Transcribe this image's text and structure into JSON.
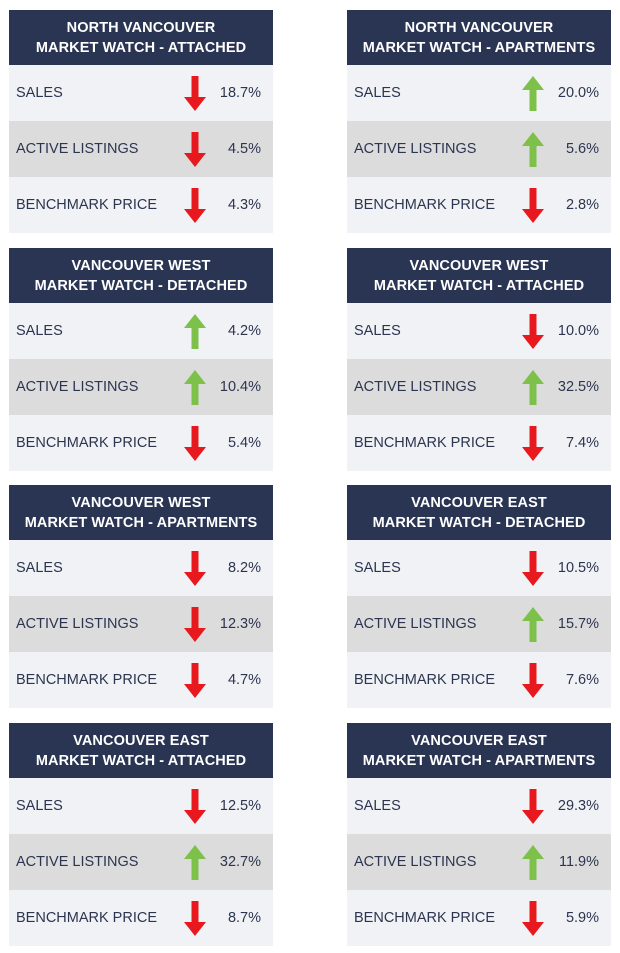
{
  "colors": {
    "header_bg": "#2a3554",
    "up": "#7dc14b",
    "down": "#e8191e",
    "row_light": "#f1f2f5",
    "row_dark": "#dcdcdc"
  },
  "cards": [
    {
      "title1": "NORTH VANCOUVER",
      "title2": "MARKET WATCH - ATTACHED",
      "rows": [
        {
          "label": "SALES",
          "dir": "down",
          "value": "18.7%"
        },
        {
          "label": "ACTIVE LISTINGS",
          "dir": "down",
          "value": "4.5%"
        },
        {
          "label": "BENCHMARK PRICE",
          "dir": "down",
          "value": "4.3%"
        }
      ]
    },
    {
      "title1": "NORTH VANCOUVER",
      "title2": "MARKET WATCH - APARTMENTS",
      "rows": [
        {
          "label": "SALES",
          "dir": "up",
          "value": "20.0%"
        },
        {
          "label": "ACTIVE LISTINGS",
          "dir": "up",
          "value": "5.6%"
        },
        {
          "label": "BENCHMARK PRICE",
          "dir": "down",
          "value": "2.8%"
        }
      ]
    },
    {
      "title1": "VANCOUVER WEST",
      "title2": "MARKET WATCH - DETACHED",
      "rows": [
        {
          "label": "SALES",
          "dir": "up",
          "value": "4.2%"
        },
        {
          "label": "ACTIVE LISTINGS",
          "dir": "up",
          "value": "10.4%"
        },
        {
          "label": "BENCHMARK PRICE",
          "dir": "down",
          "value": "5.4%"
        }
      ]
    },
    {
      "title1": "VANCOUVER WEST",
      "title2": "MARKET WATCH - ATTACHED",
      "rows": [
        {
          "label": "SALES",
          "dir": "down",
          "value": "10.0%"
        },
        {
          "label": "ACTIVE LISTINGS",
          "dir": "up",
          "value": "32.5%"
        },
        {
          "label": "BENCHMARK PRICE",
          "dir": "down",
          "value": "7.4%"
        }
      ]
    },
    {
      "title1": "VANCOUVER WEST",
      "title2": "MARKET WATCH - APARTMENTS",
      "rows": [
        {
          "label": "SALES",
          "dir": "down",
          "value": "8.2%"
        },
        {
          "label": "ACTIVE LISTINGS",
          "dir": "down",
          "value": "12.3%"
        },
        {
          "label": "BENCHMARK PRICE",
          "dir": "down",
          "value": "4.7%"
        }
      ]
    },
    {
      "title1": "VANCOUVER EAST",
      "title2": "MARKET WATCH - DETACHED",
      "rows": [
        {
          "label": "SALES",
          "dir": "down",
          "value": "10.5%"
        },
        {
          "label": "ACTIVE LISTINGS",
          "dir": "up",
          "value": "15.7%"
        },
        {
          "label": "BENCHMARK PRICE",
          "dir": "down",
          "value": "7.6%"
        }
      ]
    },
    {
      "title1": "VANCOUVER EAST",
      "title2": "MARKET WATCH - ATTACHED",
      "rows": [
        {
          "label": "SALES",
          "dir": "down",
          "value": "12.5%"
        },
        {
          "label": "ACTIVE LISTINGS",
          "dir": "up",
          "value": "32.7%"
        },
        {
          "label": "BENCHMARK PRICE",
          "dir": "down",
          "value": "8.7%"
        }
      ]
    },
    {
      "title1": "VANCOUVER EAST",
      "title2": "MARKET WATCH - APARTMENTS",
      "rows": [
        {
          "label": "SALES",
          "dir": "down",
          "value": "29.3%"
        },
        {
          "label": "ACTIVE LISTINGS",
          "dir": "up",
          "value": "11.9%"
        },
        {
          "label": "BENCHMARK PRICE",
          "dir": "down",
          "value": "5.9%"
        }
      ]
    }
  ]
}
